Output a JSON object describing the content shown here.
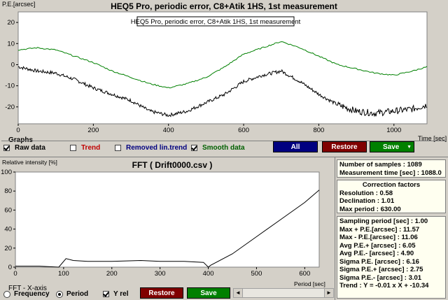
{
  "top_chart": {
    "title": "HEQ5 Pro, periodic error, C8+Atik 1HS, 1st measurement",
    "legend": "HEQ5 Pro, periodic error, C8+Atik 1HS, 1st measurement",
    "ylabel": "P.E.[arcsec]",
    "xlabel": "Time [sec]"
  },
  "graphs": {
    "title": "Graphs",
    "raw": "Raw data",
    "trend": "Trend",
    "removed": "Removed lin.trend",
    "smooth": "Smooth data",
    "raw_checked": true,
    "trend_checked": false,
    "removed_checked": false,
    "smooth_checked": true,
    "all_button": "All",
    "restore_button": "Restore",
    "save_button": "Save"
  },
  "fft_chart": {
    "title": "FFT ( Drift0000.csv )",
    "ylabel": "Relative intensity [%]",
    "xlabel": "Period [sec]"
  },
  "fft_controls": {
    "axis_title": "FFT - X-axis",
    "frequency": "Frequency",
    "period": "Period",
    "selected": "Period",
    "yrel": "Y rel",
    "yrel_checked": true,
    "restore_button": "Restore",
    "save_button": "Save"
  },
  "info": {
    "samples": "Number of samples : 1089",
    "meas_time": "Measurement time [sec] : 1088.0",
    "cf_title": "Correction factors",
    "resolution": "Resolution : 0.58",
    "declination": "Declination : 1.01",
    "max_period": "Max period : 630.00",
    "stats": [
      "Sampling period [sec] : 1.00",
      "Max + P.E.[arcsec] : 11.57",
      "Max - P.E.[arcsec] : 11.06",
      "Avg P.E.+ [arcsec] : 6.05",
      "Avg P.E.- [arcsec] : 4.90",
      "Sigma P.E. [arcsec] : 6.16",
      "Sigma P.E.+ [arcsec] : 2.75",
      "Sigma P.E.- [arcsec] : 3.01",
      "Trend : Y = -0.01 x X + -10.34"
    ]
  },
  "colors": {
    "raw": "#000000",
    "smooth": "#008000",
    "trend_text": "#c00000",
    "removed_text": "#000080",
    "smooth_text": "#006000",
    "all_btn": "#000080",
    "restore_btn": "#800000",
    "save_btn": "#008000",
    "plot_bg": "#ffffff",
    "app_bg": "#d4d0c8"
  },
  "chart_data": [
    {
      "type": "line",
      "title": "HEQ5 Pro, periodic error, C8+Atik 1HS, 1st measurement",
      "xlabel": "Time [sec]",
      "ylabel": "P.E.[arcsec]",
      "xlim": [
        0,
        1088
      ],
      "ylim": [
        -28,
        25
      ],
      "xticks": [
        0,
        200,
        400,
        600,
        800,
        1000
      ],
      "yticks": [
        20,
        10,
        0,
        -10,
        -20
      ],
      "grid": false,
      "legend": "top-center",
      "series": [
        {
          "name": "Raw data",
          "x": [
            0,
            50,
            100,
            150,
            200,
            250,
            300,
            350,
            400,
            450,
            500,
            550,
            600,
            650,
            700,
            750,
            800,
            850,
            900,
            950,
            1000,
            1050,
            1088
          ],
          "y": [
            -1,
            -3,
            -4,
            -7,
            -11,
            -14,
            -17,
            -22,
            -24,
            -22,
            -18,
            -14,
            -8,
            -5,
            -3,
            -8,
            -14,
            -19,
            -22,
            -23,
            -22,
            -21,
            -19
          ]
        },
        {
          "name": "Smooth data",
          "x": [
            0,
            50,
            100,
            150,
            200,
            250,
            300,
            350,
            400,
            450,
            500,
            550,
            600,
            650,
            700,
            750,
            800,
            850,
            900,
            950,
            1000,
            1050,
            1088
          ],
          "y": [
            7,
            8,
            7,
            4,
            1,
            -3,
            -6,
            -9,
            -11,
            -9,
            -6,
            -1,
            5,
            8,
            11,
            8,
            4,
            0,
            -2,
            -4,
            -5,
            -3,
            -1
          ]
        }
      ]
    },
    {
      "type": "line",
      "title": "FFT ( Drift0000.csv )",
      "xlabel": "Period [sec]",
      "ylabel": "Relative intensity [%]",
      "xlim": [
        0,
        630
      ],
      "ylim": [
        0,
        100
      ],
      "xticks": [
        0,
        100,
        200,
        300,
        400,
        500,
        600
      ],
      "yticks": [
        0,
        20,
        40,
        60,
        80,
        100
      ],
      "grid": false,
      "series": [
        {
          "x": [
            0,
            50,
            90,
            105,
            120,
            150,
            200,
            260,
            300,
            350,
            390,
            400,
            405,
            450,
            500,
            550,
            600,
            630
          ],
          "y": [
            1,
            1,
            0,
            9,
            7,
            6,
            6,
            7,
            6,
            6,
            5,
            0,
            2,
            14,
            32,
            50,
            68,
            81
          ]
        }
      ]
    }
  ]
}
